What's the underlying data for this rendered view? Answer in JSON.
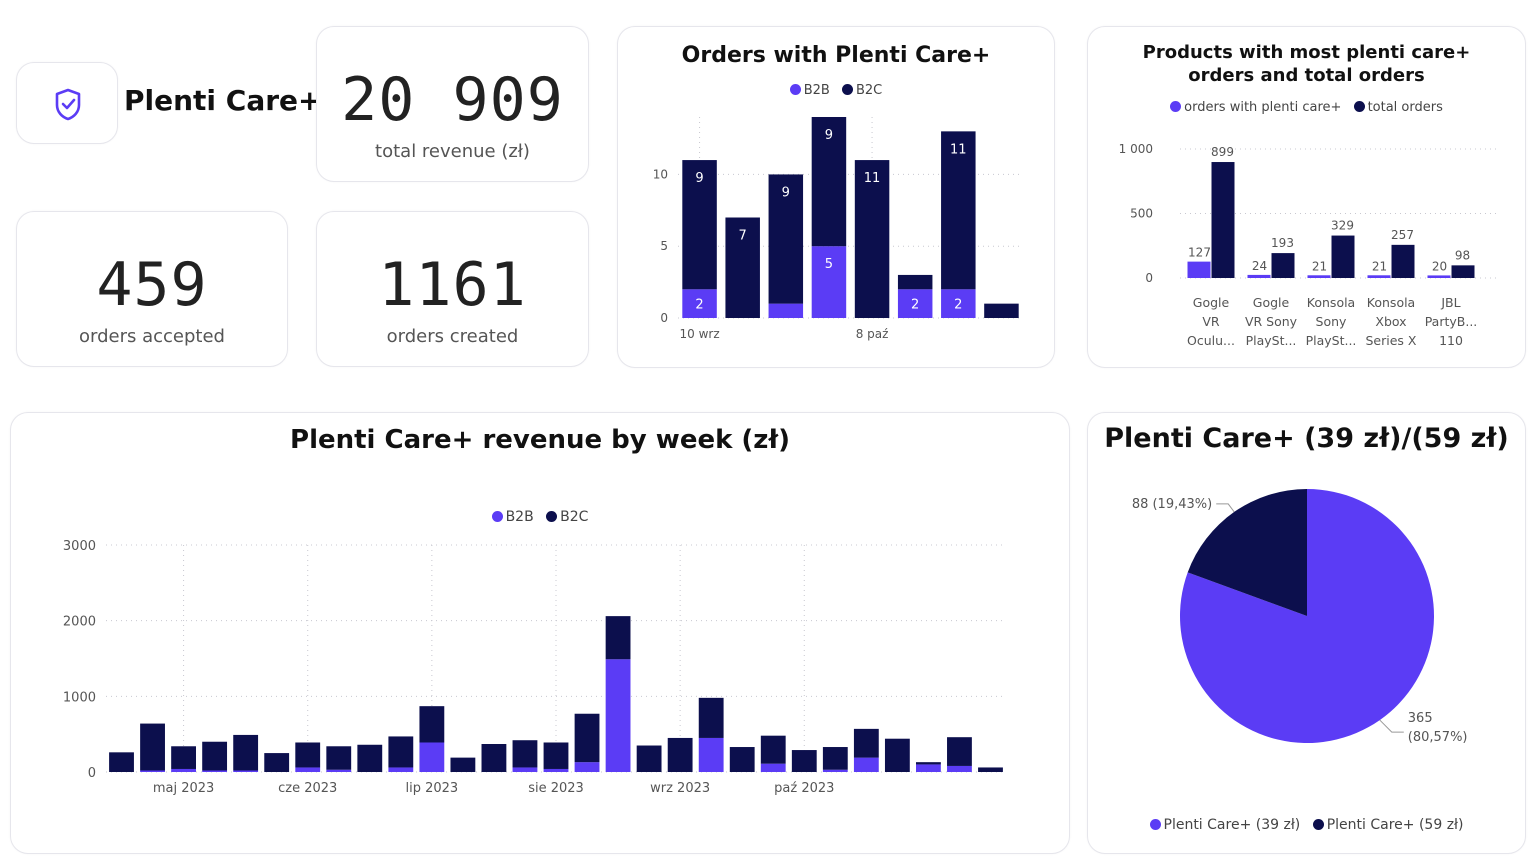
{
  "colors": {
    "b2b": "#5b3cf5",
    "b2c": "#0c0f4d",
    "grid": "#c8c8d0",
    "text": "#555555"
  },
  "logo": {
    "icon": "shield-check-icon",
    "title": "Plenti Care+"
  },
  "kpis": {
    "revenue": {
      "value": "20 909",
      "label": "total revenue (zł)"
    },
    "accepted": {
      "value": "459",
      "label": "orders accepted"
    },
    "created": {
      "value": "1161",
      "label": "orders created"
    }
  },
  "chart_data": [
    {
      "id": "orders",
      "type": "bar",
      "stacked": true,
      "title": "Orders with Plenti Care+",
      "legend": [
        "B2B",
        "B2C"
      ],
      "x_tick_labels": [
        "10 wrz",
        "8 paź"
      ],
      "ylim": [
        0,
        14
      ],
      "y_ticks": [
        0,
        5,
        10
      ],
      "grid": true,
      "series": [
        {
          "name": "B2B",
          "values": [
            2,
            0,
            1,
            5,
            0,
            2,
            2,
            0
          ]
        },
        {
          "name": "B2C",
          "values": [
            9,
            7,
            9,
            9,
            11,
            1,
            11,
            1
          ]
        }
      ],
      "data_labels": [
        {
          "b2b": "2",
          "b2c": "9"
        },
        {
          "b2b": "",
          "b2c": "7"
        },
        {
          "b2b": "",
          "b2c": "9"
        },
        {
          "b2b": "5",
          "b2c": "9"
        },
        {
          "b2b": "",
          "b2c": "11"
        },
        {
          "b2b": "2",
          "b2c": ""
        },
        {
          "b2b": "2",
          "b2c": "11"
        },
        {
          "b2b": "",
          "b2c": ""
        }
      ]
    },
    {
      "id": "products",
      "type": "bar",
      "title": "Products with most plenti care+ orders and total orders",
      "legend": [
        "orders with plenti care+",
        "total orders"
      ],
      "categories": [
        [
          "Gogle",
          "VR",
          "Oculu..."
        ],
        [
          "Gogle",
          "VR Sony",
          "PlaySt..."
        ],
        [
          "Konsola",
          "Sony",
          "PlaySt..."
        ],
        [
          "Konsola",
          "Xbox",
          "Series X"
        ],
        [
          "JBL",
          "PartyB...",
          "110"
        ]
      ],
      "ylim": [
        0,
        1000
      ],
      "y_ticks": [
        {
          "v": 0,
          "label": "0"
        },
        {
          "v": 500,
          "label": "500"
        },
        {
          "v": 1000,
          "label": "1 000"
        }
      ],
      "grid": true,
      "series": [
        {
          "name": "orders with plenti care+",
          "values": [
            127,
            24,
            21,
            21,
            20
          ]
        },
        {
          "name": "total orders",
          "values": [
            899,
            193,
            329,
            257,
            98
          ]
        }
      ]
    },
    {
      "id": "weekly",
      "type": "bar",
      "stacked": true,
      "title": "Plenti Care+ revenue by week (zł)",
      "legend": [
        "B2B",
        "B2C"
      ],
      "ylim": [
        0,
        3000
      ],
      "y_ticks": [
        0,
        1000,
        2000,
        3000
      ],
      "x_labels": [
        {
          "index": 2,
          "label": "maj 2023"
        },
        {
          "index": 6,
          "label": "cze 2023"
        },
        {
          "index": 10,
          "label": "lip 2023"
        },
        {
          "index": 14,
          "label": "sie 2023"
        },
        {
          "index": 18,
          "label": "wrz 2023"
        },
        {
          "index": 22,
          "label": "paź 2023"
        }
      ],
      "grid": true,
      "series": [
        {
          "name": "B2B",
          "values": [
            0,
            20,
            40,
            20,
            20,
            0,
            60,
            30,
            0,
            60,
            390,
            0,
            0,
            60,
            40,
            130,
            1490,
            0,
            0,
            450,
            0,
            110,
            0,
            30,
            190,
            0,
            100,
            80,
            0
          ]
        },
        {
          "name": "B2C",
          "values": [
            260,
            620,
            300,
            380,
            470,
            250,
            330,
            310,
            360,
            410,
            480,
            190,
            370,
            360,
            350,
            640,
            570,
            350,
            450,
            530,
            330,
            370,
            290,
            300,
            380,
            440,
            30,
            380,
            60
          ]
        }
      ]
    },
    {
      "id": "pie",
      "type": "pie",
      "title": "Plenti Care+ (39 zł)/(59 zł)",
      "legend": [
        "Plenti Care+ (39 zł)",
        "Plenti Care+ (59 zł)"
      ],
      "slices": [
        {
          "name": "Plenti Care+ (39 zł)",
          "value": 365,
          "label1": "365",
          "label2": "(80,57%)"
        },
        {
          "name": "Plenti Care+ (59 zł)",
          "value": 88,
          "label1": "88 (19,43%)"
        }
      ]
    }
  ]
}
